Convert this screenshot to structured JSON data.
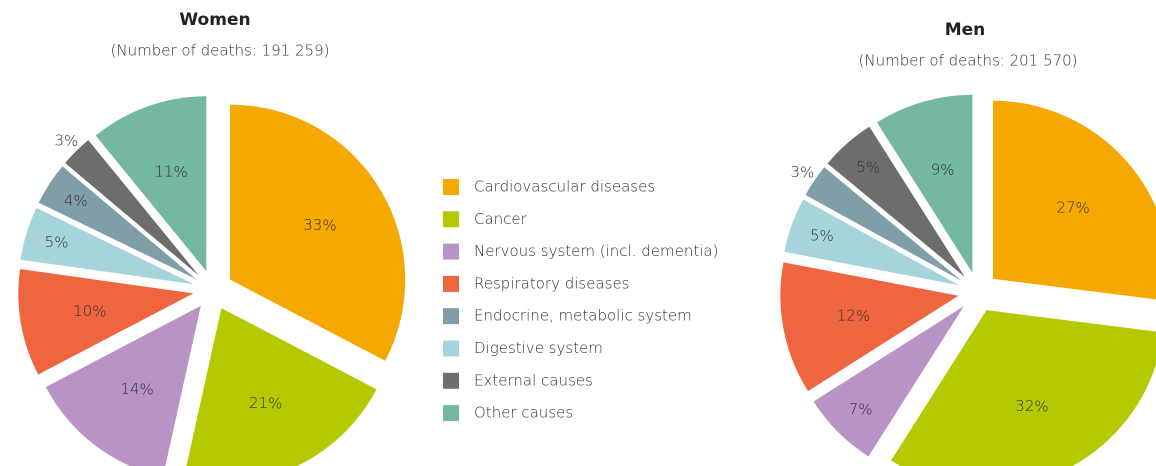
{
  "legend": {
    "categories": [
      "Cardiovascular diseases",
      "Cancer",
      "Nervous system (incl. dementia)",
      "Respiratory diseases",
      "Endocrine, metabolic system",
      "Digestive system",
      "External causes",
      "Other causes"
    ],
    "colors": [
      "#f5a800",
      "#b5c900",
      "#b894c6",
      "#ee6540",
      "#7f9ea8",
      "#a6d4dd",
      "#6d6d6d",
      "#74b7a3"
    ]
  },
  "chart_data": [
    {
      "type": "pie",
      "title": "Women",
      "subtitle": "(Number of deaths: 191 259)",
      "values": [
        33,
        21,
        14,
        10,
        4,
        5,
        3,
        11
      ]
    },
    {
      "type": "pie",
      "title": "Men",
      "subtitle": "(Number of deaths: 201 570)",
      "values": [
        27,
        32,
        7,
        12,
        3,
        5,
        5,
        9
      ]
    }
  ]
}
